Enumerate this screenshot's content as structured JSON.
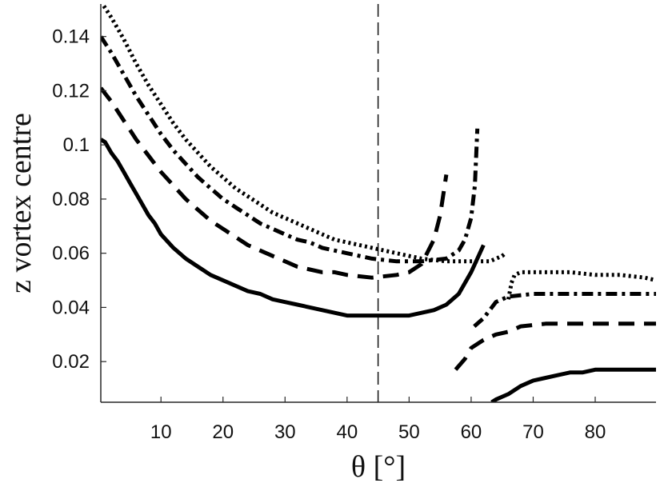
{
  "chart_data": {
    "type": "line",
    "title": "",
    "xlabel": "θ [°]",
    "ylabel": "z vortex centre",
    "xlim": [
      0.3,
      89.8
    ],
    "ylim": [
      0.005,
      0.152
    ],
    "xticks": [
      10,
      20,
      30,
      40,
      50,
      60,
      70,
      80
    ],
    "yticks": [
      0.02,
      0.04,
      0.06,
      0.08,
      0.1,
      0.12,
      0.14
    ],
    "ytick_labels": [
      "0.02",
      "0.04",
      "0.06",
      "0.08",
      "0.1",
      "0.12",
      "0.14"
    ],
    "grid": false,
    "legend": "none",
    "reference_lines": [
      {
        "orientation": "vertical",
        "x": 45,
        "style": "long-dashed"
      }
    ],
    "series": [
      {
        "style": "solid",
        "segments": [
          [
            [
              0.3,
              0.102
            ],
            [
              1,
              0.101
            ],
            [
              2,
              0.097
            ],
            [
              3,
              0.094
            ],
            [
              4,
              0.09
            ],
            [
              5,
              0.086
            ],
            [
              6,
              0.082
            ],
            [
              7,
              0.078
            ],
            [
              8,
              0.074
            ],
            [
              9,
              0.071
            ],
            [
              10,
              0.067
            ],
            [
              12,
              0.062
            ],
            [
              14,
              0.058
            ],
            [
              16,
              0.055
            ],
            [
              18,
              0.052
            ],
            [
              20,
              0.05
            ],
            [
              22,
              0.048
            ],
            [
              24,
              0.046
            ],
            [
              26,
              0.045
            ],
            [
              28,
              0.043
            ],
            [
              30,
              0.042
            ],
            [
              32,
              0.041
            ],
            [
              34,
              0.04
            ],
            [
              36,
              0.039
            ],
            [
              38,
              0.038
            ],
            [
              40,
              0.037
            ],
            [
              44,
              0.037
            ],
            [
              48,
              0.037
            ],
            [
              50,
              0.037
            ],
            [
              52,
              0.038
            ],
            [
              54,
              0.039
            ],
            [
              56,
              0.041
            ],
            [
              58,
              0.045
            ],
            [
              60,
              0.053
            ],
            [
              62,
              0.063
            ]
          ],
          [
            [
              63.3,
              0.005
            ],
            [
              64,
              0.006
            ],
            [
              66,
              0.008
            ],
            [
              68,
              0.011
            ],
            [
              70,
              0.013
            ],
            [
              72,
              0.014
            ],
            [
              74,
              0.015
            ],
            [
              76,
              0.016
            ],
            [
              78,
              0.016
            ],
            [
              80,
              0.017
            ],
            [
              84,
              0.017
            ],
            [
              89.8,
              0.017
            ]
          ]
        ]
      },
      {
        "style": "dashed",
        "segments": [
          [
            [
              0.3,
              0.121
            ],
            [
              2,
              0.116
            ],
            [
              4,
              0.109
            ],
            [
              6,
              0.102
            ],
            [
              8,
              0.096
            ],
            [
              10,
              0.09
            ],
            [
              12,
              0.085
            ],
            [
              14,
              0.08
            ],
            [
              16,
              0.076
            ],
            [
              18,
              0.072
            ],
            [
              20,
              0.069
            ],
            [
              22,
              0.066
            ],
            [
              24,
              0.063
            ],
            [
              26,
              0.061
            ],
            [
              28,
              0.059
            ],
            [
              30,
              0.057
            ],
            [
              32,
              0.055
            ],
            [
              34,
              0.054
            ],
            [
              36,
              0.053
            ],
            [
              38,
              0.053
            ],
            [
              40,
              0.052
            ],
            [
              44,
              0.051
            ],
            [
              48,
              0.052
            ],
            [
              50,
              0.053
            ],
            [
              52,
              0.056
            ],
            [
              54,
              0.065
            ],
            [
              55,
              0.074
            ],
            [
              56,
              0.089
            ]
          ],
          [
            [
              57.5,
              0.017
            ],
            [
              59,
              0.021
            ],
            [
              60,
              0.025
            ],
            [
              62,
              0.028
            ],
            [
              64,
              0.03
            ],
            [
              66,
              0.031
            ],
            [
              68,
              0.033
            ],
            [
              72,
              0.034
            ],
            [
              89.8,
              0.034
            ]
          ]
        ]
      },
      {
        "style": "dash-dot",
        "segments": [
          [
            [
              0.3,
              0.14
            ],
            [
              2,
              0.134
            ],
            [
              4,
              0.126
            ],
            [
              6,
              0.118
            ],
            [
              8,
              0.111
            ],
            [
              10,
              0.104
            ],
            [
              12,
              0.098
            ],
            [
              14,
              0.093
            ],
            [
              16,
              0.088
            ],
            [
              18,
              0.084
            ],
            [
              20,
              0.08
            ],
            [
              22,
              0.077
            ],
            [
              24,
              0.074
            ],
            [
              26,
              0.071
            ],
            [
              28,
              0.069
            ],
            [
              30,
              0.067
            ],
            [
              32,
              0.065
            ],
            [
              34,
              0.064
            ],
            [
              36,
              0.062
            ],
            [
              38,
              0.061
            ],
            [
              40,
              0.06
            ],
            [
              44,
              0.058
            ],
            [
              48,
              0.057
            ],
            [
              52,
              0.057
            ],
            [
              56,
              0.058
            ],
            [
              58,
              0.061
            ],
            [
              59,
              0.065
            ],
            [
              60,
              0.073
            ],
            [
              60.6,
              0.085
            ],
            [
              61,
              0.106
            ]
          ],
          [
            [
              60.5,
              0.033
            ],
            [
              62,
              0.036
            ],
            [
              63,
              0.039
            ],
            [
              64,
              0.042
            ],
            [
              66,
              0.044
            ],
            [
              70,
              0.045
            ],
            [
              89.8,
              0.045
            ]
          ]
        ]
      },
      {
        "style": "dotted",
        "segments": [
          [
            [
              0.3,
              0.153
            ],
            [
              2,
              0.147
            ],
            [
              4,
              0.139
            ],
            [
              6,
              0.13
            ],
            [
              8,
              0.122
            ],
            [
              10,
              0.115
            ],
            [
              12,
              0.108
            ],
            [
              14,
              0.102
            ],
            [
              16,
              0.097
            ],
            [
              18,
              0.092
            ],
            [
              20,
              0.088
            ],
            [
              22,
              0.084
            ],
            [
              24,
              0.081
            ],
            [
              26,
              0.078
            ],
            [
              28,
              0.075
            ],
            [
              30,
              0.073
            ],
            [
              32,
              0.071
            ],
            [
              34,
              0.069
            ],
            [
              36,
              0.067
            ],
            [
              38,
              0.065
            ],
            [
              40,
              0.064
            ],
            [
              44,
              0.062
            ],
            [
              48,
              0.06
            ],
            [
              52,
              0.058
            ],
            [
              56,
              0.057
            ],
            [
              60,
              0.057
            ],
            [
              63,
              0.057
            ],
            [
              65,
              0.059
            ],
            [
              65.5,
              0.06
            ]
          ],
          [
            [
              66,
              0.043
            ],
            [
              66.5,
              0.049
            ],
            [
              67,
              0.052
            ],
            [
              68,
              0.053
            ],
            [
              72,
              0.053
            ],
            [
              76,
              0.053
            ],
            [
              80,
              0.052
            ],
            [
              84,
              0.052
            ],
            [
              88,
              0.051
            ],
            [
              89.8,
              0.05
            ]
          ]
        ]
      }
    ]
  }
}
